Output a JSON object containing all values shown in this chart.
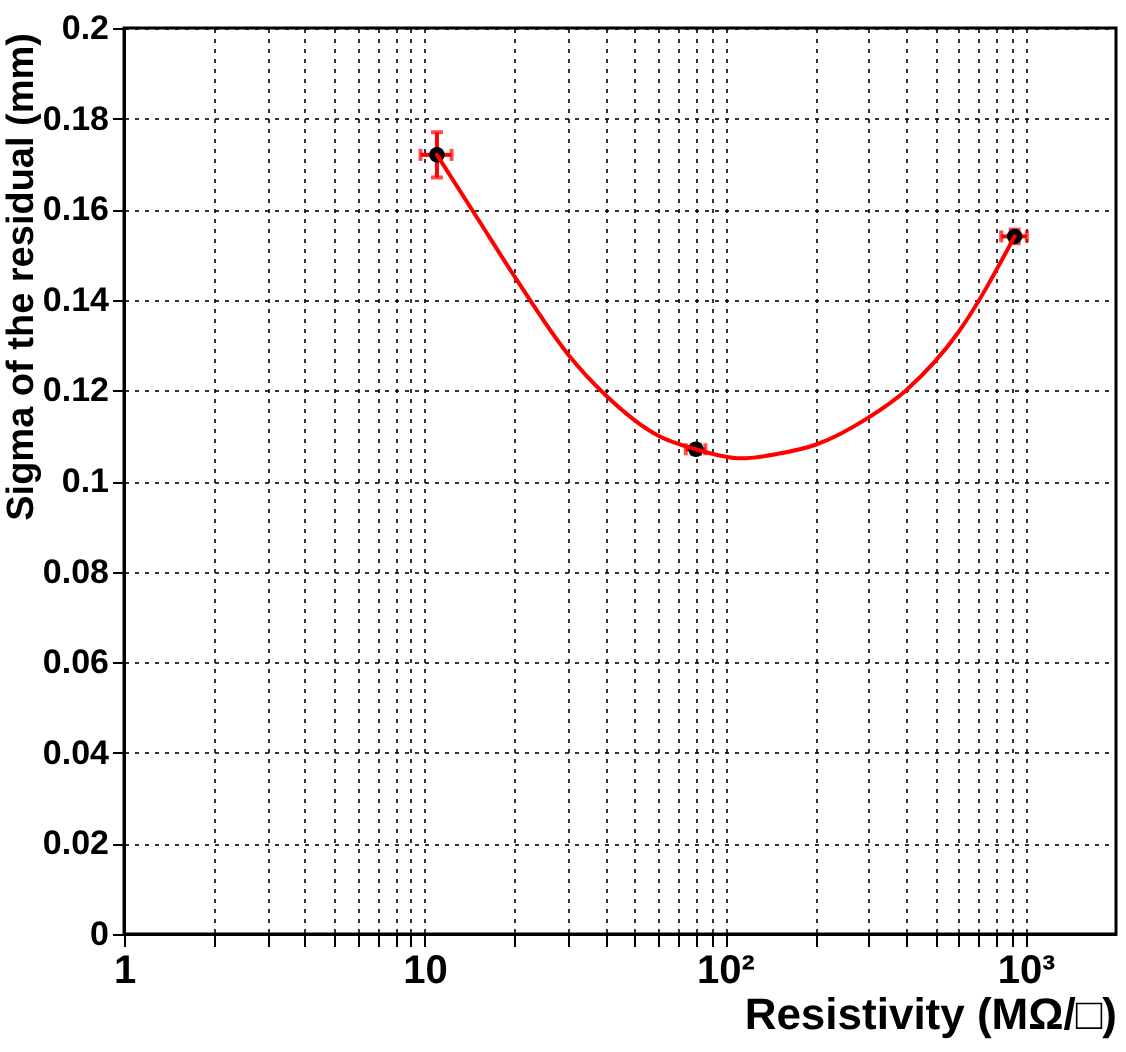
{
  "chart_data": {
    "type": "scatter",
    "xlabel": "Resistivity (MΩ/□)",
    "ylabel": "Sigma of the residual (mm)",
    "log": "x",
    "xlim": [
      1,
      2000
    ],
    "ylim": [
      0,
      0.2
    ],
    "xticks": [
      1,
      {
        "value": 2,
        "label": null
      },
      {
        "value": 3,
        "label": null
      },
      {
        "value": 4,
        "label": null
      },
      {
        "value": 5,
        "label": null
      },
      {
        "value": 6,
        "label": null
      },
      {
        "value": 7,
        "label": null
      },
      {
        "value": 8,
        "label": null
      },
      {
        "value": 9,
        "label": null
      },
      10,
      {
        "value": 20,
        "label": null
      },
      {
        "value": 30,
        "label": null
      },
      {
        "value": 40,
        "label": null
      },
      {
        "value": 50,
        "label": null
      },
      {
        "value": 60,
        "label": null
      },
      {
        "value": 70,
        "label": null
      },
      {
        "value": 80,
        "label": null
      },
      {
        "value": 90,
        "label": null
      },
      {
        "value": 100,
        "label": "10²"
      },
      {
        "value": 200,
        "label": null
      },
      {
        "value": 300,
        "label": null
      },
      {
        "value": 400,
        "label": null
      },
      {
        "value": 500,
        "label": null
      },
      {
        "value": 600,
        "label": null
      },
      {
        "value": 700,
        "label": null
      },
      {
        "value": 800,
        "label": null
      },
      {
        "value": 900,
        "label": null
      },
      {
        "value": 1000,
        "label": "10³"
      }
    ],
    "yticks": [
      0,
      0.02,
      0.04,
      0.06,
      0.08,
      0.1,
      0.12,
      0.14,
      0.16,
      0.18,
      0.2
    ],
    "grid": true,
    "marker": "circle",
    "series": [
      {
        "color": "#000000",
        "x": [
          11,
          80,
          920
        ],
        "values": [
          0.172,
          0.107,
          0.154
        ],
        "errors": [
          0.005,
          0.001,
          0.0015
        ],
        "xerrors": [
          1.3,
          6,
          90
        ]
      },
      {
        "type": "line",
        "color": "#ff0000",
        "line_style": "solid",
        "marker": "none",
        "x": [
          11,
          15,
          20,
          30,
          40,
          60,
          80,
          113,
          150,
          200,
          300,
          400,
          600,
          920
        ],
        "values": [
          0.172,
          0.158,
          0.145,
          0.128,
          0.119,
          0.11,
          0.107,
          0.105,
          0.106,
          0.108,
          0.114,
          0.12,
          0.133,
          0.154
        ]
      }
    ]
  }
}
